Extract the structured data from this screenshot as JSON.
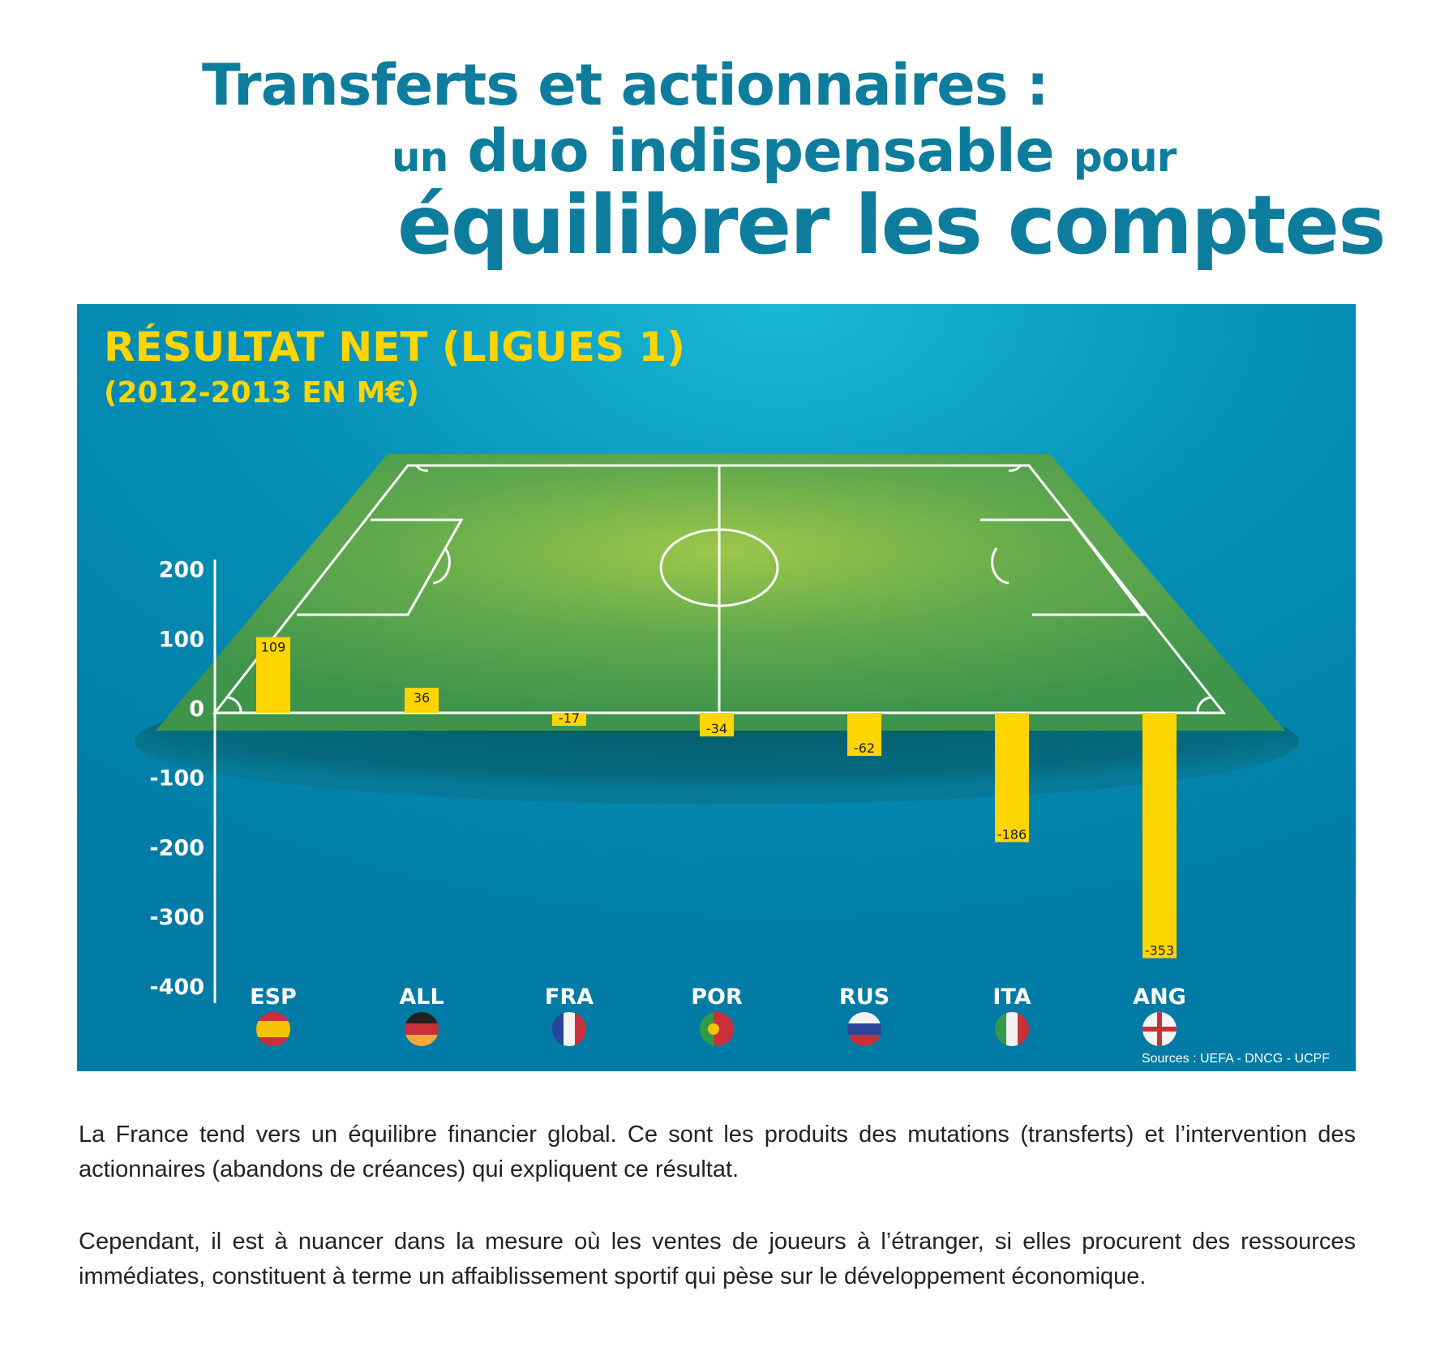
{
  "header": {
    "line1": "Transferts et actionnaires :",
    "line2_pre": "un",
    "line2_main": "duo indispensable",
    "line2_post": "pour",
    "line3": "équilibrer les comptes"
  },
  "colors": {
    "title": "#0e7d9d",
    "bar": "#ffd500",
    "panel": "#0a7fa6",
    "pitch": "#4a9d4a"
  },
  "chart_data": {
    "type": "bar",
    "title": "RÉSULTAT NET (LIGUES 1)",
    "subtitle": "(2012-2013 EN M€)",
    "categories": [
      "ESP",
      "ALL",
      "FRA",
      "POR",
      "RUS",
      "ITA",
      "ANG"
    ],
    "flags": [
      "spain-flag-icon",
      "germany-flag-icon",
      "france-flag-icon",
      "portugal-flag-icon",
      "russia-flag-icon",
      "italy-flag-icon",
      "england-flag-icon"
    ],
    "values": [
      109,
      36,
      -17,
      -34,
      -62,
      -186,
      -353
    ],
    "data_labels": [
      "109",
      "36",
      "-17",
      "-34",
      "-62",
      "-186",
      "-353"
    ],
    "ylim": [
      -400,
      200
    ],
    "yticks": [
      "200",
      "100",
      "0",
      "-100",
      "-200",
      "-300",
      "-400"
    ],
    "grid": false,
    "source": "Sources : UEFA - DNCG - UCPF"
  },
  "body": {
    "paragraph1": "La France tend vers un équilibre financier global. Ce sont les produits des mutations (transferts) et l’intervention des actionnaires (abandons de créances) qui expliquent ce résultat.",
    "paragraph2": "Cependant, il est à nuancer dans la mesure où les ventes de joueurs à l’étranger, si elles procurent des ressources immédiates, constituent à terme un affaiblissement sportif qui pèse sur le développement économique."
  }
}
